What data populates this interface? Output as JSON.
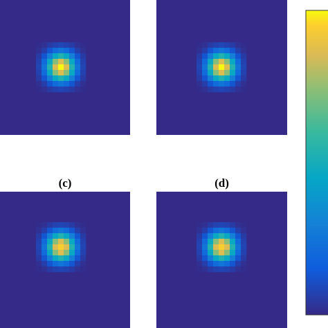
{
  "chart_data": [
    {
      "type": "heatmap",
      "z": [
        [
          0.01,
          0.02,
          0.05,
          0.07,
          0.08,
          0.07,
          0.05,
          0.02,
          0.01
        ],
        [
          0.02,
          0.06,
          0.13,
          0.21,
          0.25,
          0.21,
          0.13,
          0.06,
          0.02
        ],
        [
          0.05,
          0.13,
          0.29,
          0.46,
          0.54,
          0.46,
          0.29,
          0.13,
          0.05
        ],
        [
          0.07,
          0.21,
          0.46,
          0.73,
          0.86,
          0.73,
          0.46,
          0.21,
          0.07
        ],
        [
          0.08,
          0.25,
          0.54,
          0.86,
          1,
          0.86,
          0.54,
          0.25,
          0.08
        ],
        [
          0.07,
          0.21,
          0.46,
          0.73,
          0.86,
          0.73,
          0.46,
          0.21,
          0.07
        ],
        [
          0.05,
          0.13,
          0.29,
          0.46,
          0.54,
          0.46,
          0.29,
          0.13,
          0.05
        ],
        [
          0.02,
          0.06,
          0.13,
          0.21,
          0.25,
          0.21,
          0.13,
          0.06,
          0.02
        ],
        [
          0.01,
          0.02,
          0.05,
          0.07,
          0.08,
          0.07,
          0.05,
          0.02,
          0.01
        ]
      ]
    },
    {
      "type": "heatmap",
      "z": [
        [
          0.01,
          0.02,
          0.05,
          0.07,
          0.08,
          0.07,
          0.05,
          0.02,
          0.01
        ],
        [
          0.02,
          0.06,
          0.13,
          0.21,
          0.25,
          0.21,
          0.13,
          0.06,
          0.02
        ],
        [
          0.05,
          0.13,
          0.29,
          0.46,
          0.54,
          0.46,
          0.29,
          0.13,
          0.05
        ],
        [
          0.07,
          0.21,
          0.46,
          0.73,
          0.86,
          0.73,
          0.46,
          0.21,
          0.07
        ],
        [
          0.08,
          0.25,
          0.54,
          0.86,
          1,
          0.86,
          0.54,
          0.25,
          0.08
        ],
        [
          0.07,
          0.21,
          0.46,
          0.73,
          0.86,
          0.73,
          0.46,
          0.21,
          0.07
        ],
        [
          0.05,
          0.13,
          0.29,
          0.46,
          0.54,
          0.46,
          0.29,
          0.13,
          0.05
        ],
        [
          0.02,
          0.06,
          0.13,
          0.21,
          0.25,
          0.21,
          0.13,
          0.06,
          0.02
        ],
        [
          0.01,
          0.02,
          0.05,
          0.07,
          0.08,
          0.07,
          0.05,
          0.02,
          0.01
        ]
      ]
    },
    {
      "type": "heatmap",
      "title": "(c)",
      "z": [
        [
          0.01,
          0.02,
          0.05,
          0.07,
          0.08,
          0.07,
          0.05,
          0.02,
          0.01
        ],
        [
          0.02,
          0.06,
          0.13,
          0.21,
          0.25,
          0.21,
          0.13,
          0.06,
          0.02
        ],
        [
          0.05,
          0.13,
          0.29,
          0.46,
          0.54,
          0.46,
          0.29,
          0.13,
          0.05
        ],
        [
          0.07,
          0.21,
          0.46,
          0.73,
          0.86,
          0.73,
          0.46,
          0.21,
          0.07
        ],
        [
          0.08,
          0.25,
          0.54,
          0.86,
          0.95,
          0.86,
          0.54,
          0.25,
          0.08
        ],
        [
          0.07,
          0.21,
          0.46,
          0.73,
          0.86,
          0.73,
          0.46,
          0.21,
          0.07
        ],
        [
          0.05,
          0.13,
          0.29,
          0.46,
          0.54,
          0.46,
          0.29,
          0.13,
          0.05
        ],
        [
          0.02,
          0.06,
          0.13,
          0.21,
          0.25,
          0.21,
          0.13,
          0.06,
          0.02
        ],
        [
          0.01,
          0.02,
          0.05,
          0.07,
          0.08,
          0.07,
          0.05,
          0.02,
          0.01
        ]
      ]
    },
    {
      "type": "heatmap",
      "title": "(d)",
      "z": [
        [
          0.01,
          0.02,
          0.05,
          0.07,
          0.08,
          0.07,
          0.05,
          0.02,
          0.01
        ],
        [
          0.02,
          0.06,
          0.13,
          0.21,
          0.25,
          0.21,
          0.13,
          0.06,
          0.02
        ],
        [
          0.05,
          0.13,
          0.29,
          0.46,
          0.54,
          0.46,
          0.29,
          0.13,
          0.05
        ],
        [
          0.07,
          0.21,
          0.46,
          0.73,
          0.86,
          0.73,
          0.46,
          0.21,
          0.07
        ],
        [
          0.08,
          0.25,
          0.54,
          0.86,
          0.95,
          0.86,
          0.54,
          0.25,
          0.08
        ],
        [
          0.07,
          0.21,
          0.46,
          0.73,
          0.86,
          0.73,
          0.46,
          0.21,
          0.07
        ],
        [
          0.05,
          0.13,
          0.29,
          0.46,
          0.54,
          0.46,
          0.29,
          0.13,
          0.05
        ],
        [
          0.02,
          0.06,
          0.13,
          0.21,
          0.25,
          0.21,
          0.13,
          0.06,
          0.02
        ],
        [
          0.01,
          0.02,
          0.05,
          0.07,
          0.08,
          0.07,
          0.05,
          0.02,
          0.01
        ]
      ]
    }
  ],
  "colorbar": {
    "zlim": [
      0,
      1
    ],
    "colormap": "parula"
  }
}
